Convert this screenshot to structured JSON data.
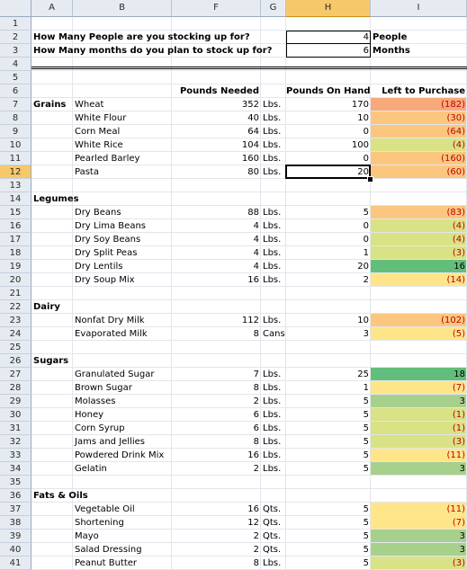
{
  "columns": [
    "A",
    "B",
    "F",
    "G",
    "H",
    "I"
  ],
  "selected_column": "H",
  "row_numbers": [
    "1",
    "2",
    "3",
    "4",
    "5",
    "6",
    "7",
    "8",
    "9",
    "10",
    "11",
    "12",
    "13",
    "14",
    "15",
    "16",
    "17",
    "18",
    "19",
    "20",
    "21",
    "22",
    "23",
    "24",
    "25",
    "26",
    "27",
    "28",
    "29",
    "30",
    "31",
    "32",
    "33",
    "34",
    "35",
    "36",
    "37",
    "38",
    "39",
    "40",
    "41"
  ],
  "selected_row": "12",
  "questions": [
    {
      "text": "How Many People are you stocking up for?",
      "value": "4",
      "unit": "People"
    },
    {
      "text": "How Many months do you plan to stock up for?",
      "value": "6",
      "unit": "Months"
    }
  ],
  "headers": {
    "pounds_needed": "Pounds Needed",
    "pounds_on_hand": "Pounds On Hand",
    "left_to_purchase": "Left to Purchase"
  },
  "colors": {
    "red": "#f8a97a",
    "orange": "#fbc77f",
    "yellow": "#fee58a",
    "light_green": "#d9e285",
    "green": "#a8d08d",
    "dark_green": "#63be7b",
    "negative_text": "#c00000"
  },
  "items": [
    {
      "row": "7",
      "category": "Grains",
      "name": "Wheat",
      "needed": "352",
      "unit": "Lbs.",
      "on_hand": "170",
      "left": "(182)",
      "color": "red",
      "neg": true
    },
    {
      "row": "8",
      "category": "",
      "name": "White Flour",
      "needed": "40",
      "unit": "Lbs.",
      "on_hand": "10",
      "left": "(30)",
      "color": "orange",
      "neg": true
    },
    {
      "row": "9",
      "category": "",
      "name": "Corn Meal",
      "needed": "64",
      "unit": "Lbs.",
      "on_hand": "0",
      "left": "(64)",
      "color": "orange",
      "neg": true
    },
    {
      "row": "10",
      "category": "",
      "name": "White Rice",
      "needed": "104",
      "unit": "Lbs.",
      "on_hand": "100",
      "left": "(4)",
      "color": "light_green",
      "neg": true
    },
    {
      "row": "11",
      "category": "",
      "name": "Pearled Barley",
      "needed": "160",
      "unit": "Lbs.",
      "on_hand": "0",
      "left": "(160)",
      "color": "orange",
      "neg": true
    },
    {
      "row": "12",
      "category": "",
      "name": "Pasta",
      "needed": "80",
      "unit": "Lbs.",
      "on_hand": "20",
      "left": "(60)",
      "color": "orange",
      "neg": true
    },
    {
      "row": "14",
      "category": "Legumes",
      "name": "",
      "needed": "",
      "unit": "",
      "on_hand": "",
      "left": "",
      "color": "",
      "neg": false
    },
    {
      "row": "15",
      "category": "",
      "name": "Dry Beans",
      "needed": "88",
      "unit": "Lbs.",
      "on_hand": "5",
      "left": "(83)",
      "color": "orange",
      "neg": true
    },
    {
      "row": "16",
      "category": "",
      "name": "Dry Lima Beans",
      "needed": "4",
      "unit": "Lbs.",
      "on_hand": "0",
      "left": "(4)",
      "color": "light_green",
      "neg": true
    },
    {
      "row": "17",
      "category": "",
      "name": "Dry Soy Beans",
      "needed": "4",
      "unit": "Lbs.",
      "on_hand": "0",
      "left": "(4)",
      "color": "light_green",
      "neg": true
    },
    {
      "row": "18",
      "category": "",
      "name": "Dry Split Peas",
      "needed": "4",
      "unit": "Lbs.",
      "on_hand": "1",
      "left": "(3)",
      "color": "light_green",
      "neg": true
    },
    {
      "row": "19",
      "category": "",
      "name": "Dry Lentils",
      "needed": "4",
      "unit": "Lbs.",
      "on_hand": "20",
      "left": "16",
      "color": "dark_green",
      "neg": false
    },
    {
      "row": "20",
      "category": "",
      "name": "Dry Soup Mix",
      "needed": "16",
      "unit": "Lbs.",
      "on_hand": "2",
      "left": "(14)",
      "color": "yellow",
      "neg": true
    },
    {
      "row": "22",
      "category": "Dairy",
      "name": "",
      "needed": "",
      "unit": "",
      "on_hand": "",
      "left": "",
      "color": "",
      "neg": false
    },
    {
      "row": "23",
      "category": "",
      "name": "Nonfat Dry Milk",
      "needed": "112",
      "unit": "Lbs.",
      "on_hand": "10",
      "left": "(102)",
      "color": "orange",
      "neg": true
    },
    {
      "row": "24",
      "category": "",
      "name": "Evaporated Milk",
      "needed": "8",
      "unit": "Cans",
      "on_hand": "3",
      "left": "(5)",
      "color": "yellow",
      "neg": true
    },
    {
      "row": "26",
      "category": "Sugars",
      "name": "",
      "needed": "",
      "unit": "",
      "on_hand": "",
      "left": "",
      "color": "",
      "neg": false
    },
    {
      "row": "27",
      "category": "",
      "name": "Granulated Sugar",
      "needed": "7",
      "unit": "Lbs.",
      "on_hand": "25",
      "left": "18",
      "color": "dark_green",
      "neg": false
    },
    {
      "row": "28",
      "category": "",
      "name": "Brown Sugar",
      "needed": "8",
      "unit": "Lbs.",
      "on_hand": "1",
      "left": "(7)",
      "color": "yellow",
      "neg": true
    },
    {
      "row": "29",
      "category": "",
      "name": "Molasses",
      "needed": "2",
      "unit": "Lbs.",
      "on_hand": "5",
      "left": "3",
      "color": "green",
      "neg": false
    },
    {
      "row": "30",
      "category": "",
      "name": "Honey",
      "needed": "6",
      "unit": "Lbs.",
      "on_hand": "5",
      "left": "(1)",
      "color": "light_green",
      "neg": true
    },
    {
      "row": "31",
      "category": "",
      "name": "Corn Syrup",
      "needed": "6",
      "unit": "Lbs.",
      "on_hand": "5",
      "left": "(1)",
      "color": "light_green",
      "neg": true
    },
    {
      "row": "32",
      "category": "",
      "name": "Jams and Jellies",
      "needed": "8",
      "unit": "Lbs.",
      "on_hand": "5",
      "left": "(3)",
      "color": "light_green",
      "neg": true
    },
    {
      "row": "33",
      "category": "",
      "name": "Powdered Drink Mix",
      "needed": "16",
      "unit": "Lbs.",
      "on_hand": "5",
      "left": "(11)",
      "color": "yellow",
      "neg": true
    },
    {
      "row": "34",
      "category": "",
      "name": "Gelatin",
      "needed": "2",
      "unit": "Lbs.",
      "on_hand": "5",
      "left": "3",
      "color": "green",
      "neg": false
    },
    {
      "row": "36",
      "category": "Fats & Oils",
      "name": "",
      "needed": "",
      "unit": "",
      "on_hand": "",
      "left": "",
      "color": "",
      "neg": false
    },
    {
      "row": "37",
      "category": "",
      "name": "Vegetable Oil",
      "needed": "16",
      "unit": "Qts.",
      "on_hand": "5",
      "left": "(11)",
      "color": "yellow",
      "neg": true
    },
    {
      "row": "38",
      "category": "",
      "name": "Shortening",
      "needed": "12",
      "unit": "Qts.",
      "on_hand": "5",
      "left": "(7)",
      "color": "yellow",
      "neg": true
    },
    {
      "row": "39",
      "category": "",
      "name": "Mayo",
      "needed": "2",
      "unit": "Qts.",
      "on_hand": "5",
      "left": "3",
      "color": "green",
      "neg": false
    },
    {
      "row": "40",
      "category": "",
      "name": "Salad Dressing",
      "needed": "2",
      "unit": "Qts.",
      "on_hand": "5",
      "left": "3",
      "color": "green",
      "neg": false
    },
    {
      "row": "41",
      "category": "",
      "name": "Peanut Butter",
      "needed": "8",
      "unit": "Lbs.",
      "on_hand": "5",
      "left": "(3)",
      "color": "light_green",
      "neg": true
    }
  ]
}
